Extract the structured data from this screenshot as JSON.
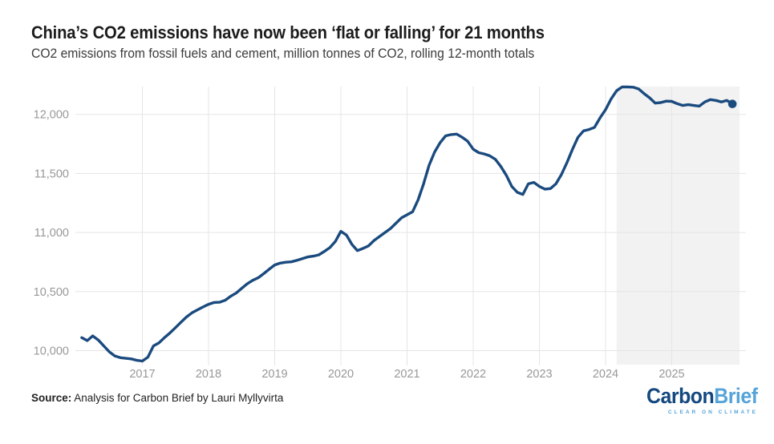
{
  "header": {
    "title": "China’s CO2 emissions have now been ‘flat or falling’ for 21 months",
    "subtitle": "CO2 emissions from fossil fuels and cement, million tonnes of CO2, rolling 12-month totals"
  },
  "footer": {
    "source_label": "Source:",
    "source_text": " Analysis for Carbon Brief by Lauri Myllyvirta",
    "logo": {
      "word_dark": "Carbon",
      "word_light": "Brief",
      "tagline": "CLEAR ON CLIMATE"
    }
  },
  "colors": {
    "line": "#1a4a7e",
    "marker": "#1a4a7e",
    "highlight_band": "#f2f2f3",
    "grid": "#e5e5e5",
    "axis_text": "#98989a",
    "logo_dark": "#14487f",
    "logo_light": "#55a4d9"
  },
  "chart_data": {
    "type": "line",
    "title": "China’s CO2 emissions have now been ‘flat or falling’ for 21 months",
    "subtitle": "CO2 emissions from fossil fuels and cement, million tonnes of CO2, rolling 12-month totals",
    "series_name": "CO2 emissions, rolling 12-month total (million tonnes)",
    "frequency": "monthly",
    "x_start_month": "2016-02",
    "values": [
      10110,
      10085,
      10125,
      10090,
      10040,
      9990,
      9955,
      9940,
      9935,
      9930,
      9918,
      9912,
      9945,
      10040,
      10065,
      10110,
      10150,
      10195,
      10240,
      10285,
      10320,
      10345,
      10370,
      10392,
      10408,
      10410,
      10426,
      10460,
      10487,
      10527,
      10565,
      10595,
      10617,
      10651,
      10689,
      10725,
      10741,
      10748,
      10752,
      10764,
      10779,
      10793,
      10800,
      10811,
      10840,
      10872,
      10924,
      11010,
      10978,
      10899,
      10847,
      10865,
      10887,
      10932,
      10966,
      11000,
      11034,
      11079,
      11124,
      11150,
      11175,
      11277,
      11412,
      11570,
      11682,
      11761,
      11818,
      11829,
      11833,
      11806,
      11772,
      11705,
      11676,
      11665,
      11649,
      11620,
      11559,
      11484,
      11390,
      11340,
      11322,
      11412,
      11424,
      11390,
      11367,
      11372,
      11412,
      11491,
      11592,
      11705,
      11806,
      11860,
      11872,
      11890,
      11970,
      12040,
      12130,
      12200,
      12232,
      12232,
      12230,
      12215,
      12175,
      12140,
      12095,
      12100,
      12112,
      12110,
      12090,
      12075,
      12082,
      12075,
      12070,
      12105,
      12125,
      12118,
      12105,
      12118,
      12088
    ],
    "xticks": [
      2017,
      2018,
      2019,
      2020,
      2021,
      2022,
      2023,
      2024,
      2025
    ],
    "yticks": [
      10000,
      10500,
      11000,
      11500,
      12000
    ],
    "ylim": [
      9885,
      12240
    ],
    "xlim": [
      2016.0,
      2026.15
    ],
    "grid": true,
    "legend": "none",
    "highlight_region": {
      "from_month": "2024-03",
      "to": "end-of-data"
    },
    "last_point_marker": true
  }
}
